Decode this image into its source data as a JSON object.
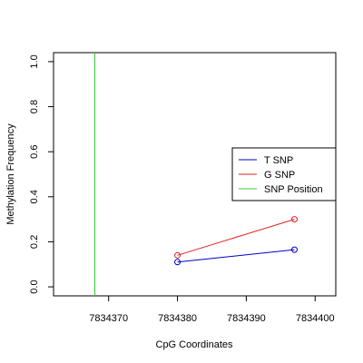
{
  "chart_data": {
    "type": "line",
    "xlabel": "CpG Coordinates",
    "ylabel": "Methylation Frequency",
    "xlim": [
      7834362,
      7834403
    ],
    "ylim": [
      -0.04,
      1.04
    ],
    "x_ticks": [
      7834370,
      7834380,
      7834390,
      7834400
    ],
    "x_tick_labels": [
      "7834370",
      "7834380",
      "7834390",
      "7834400"
    ],
    "y_ticks": [
      0.0,
      0.2,
      0.4,
      0.6,
      0.8,
      1.0
    ],
    "y_tick_labels": [
      "0.0",
      "0.2",
      "0.4",
      "0.6",
      "0.8",
      "1.0"
    ],
    "grid": false,
    "legend_position": "right",
    "series": [
      {
        "name": "T SNP",
        "color": "#0000cc",
        "marker": "circle",
        "x": [
          7834380,
          7834397
        ],
        "y": [
          0.11,
          0.165
        ]
      },
      {
        "name": "G SNP",
        "color": "#dd2222",
        "marker": "circle",
        "x": [
          7834380,
          7834397
        ],
        "y": [
          0.14,
          0.3
        ]
      }
    ],
    "snp_position": {
      "name": "SNP Position",
      "color": "#33cc33",
      "x": 7834368
    }
  }
}
